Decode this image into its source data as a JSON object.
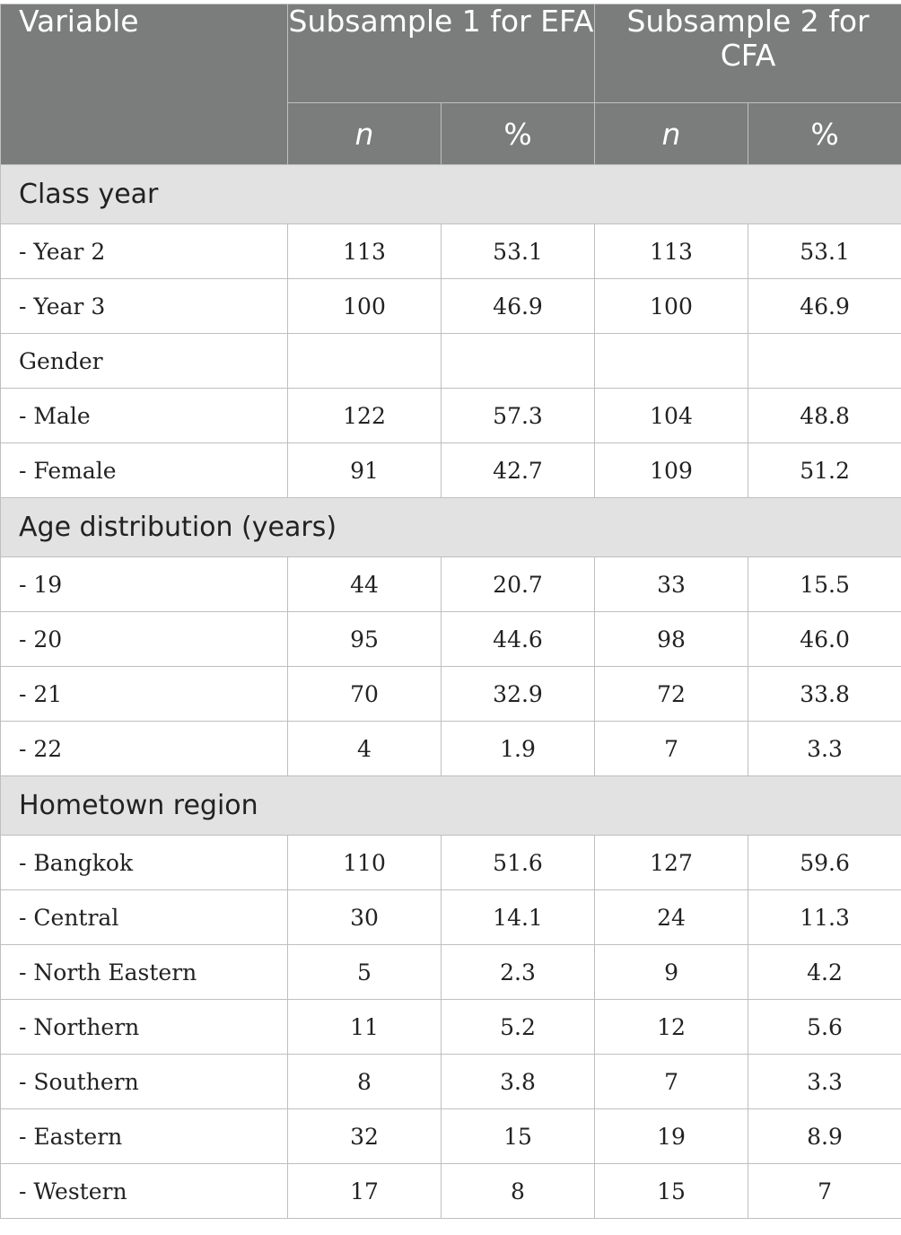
{
  "header": {
    "variable": "Variable",
    "subsample1": "Subsample 1 for EFA",
    "subsample2": "Subsample 2 for CFA",
    "n_label": "n",
    "pct_label": "%"
  },
  "rows": [
    {
      "type": "section",
      "label": "Class year"
    },
    {
      "type": "row",
      "label": "- Year 2",
      "n1": "113",
      "p1": "53.1",
      "n2": "113",
      "p2": "53.1"
    },
    {
      "type": "row",
      "label": "- Year 3",
      "n1": "100",
      "p1": "46.9",
      "n2": "100",
      "p2": "46.9"
    },
    {
      "type": "row",
      "label": "Gender",
      "n1": "",
      "p1": "",
      "n2": "",
      "p2": ""
    },
    {
      "type": "row",
      "label": "- Male",
      "n1": "122",
      "p1": "57.3",
      "n2": "104",
      "p2": "48.8"
    },
    {
      "type": "row",
      "label": "- Female",
      "n1": "91",
      "p1": "42.7",
      "n2": "109",
      "p2": "51.2"
    },
    {
      "type": "section",
      "label": "Age distribution (years)"
    },
    {
      "type": "row",
      "label": "- 19",
      "n1": "44",
      "p1": "20.7",
      "n2": "33",
      "p2": "15.5"
    },
    {
      "type": "row",
      "label": "- 20",
      "n1": "95",
      "p1": "44.6",
      "n2": "98",
      "p2": "46.0"
    },
    {
      "type": "row",
      "label": "- 21",
      "n1": "70",
      "p1": "32.9",
      "n2": "72",
      "p2": "33.8"
    },
    {
      "type": "row",
      "label": "- 22",
      "n1": "4",
      "p1": "1.9",
      "n2": "7",
      "p2": "3.3"
    },
    {
      "type": "section",
      "label": "Hometown region"
    },
    {
      "type": "row",
      "label": "- Bangkok",
      "n1": "110",
      "p1": "51.6",
      "n2": "127",
      "p2": "59.6"
    },
    {
      "type": "row",
      "label": "- Central",
      "n1": "30",
      "p1": "14.1",
      "n2": "24",
      "p2": "11.3"
    },
    {
      "type": "row",
      "label": "- North Eastern",
      "n1": "5",
      "p1": "2.3",
      "n2": "9",
      "p2": "4.2"
    },
    {
      "type": "row",
      "label": "- Northern",
      "n1": "11",
      "p1": "5.2",
      "n2": "12",
      "p2": "5.6"
    },
    {
      "type": "row",
      "label": "- Southern",
      "n1": "8",
      "p1": "3.8",
      "n2": "7",
      "p2": "3.3"
    },
    {
      "type": "row",
      "label": "- Eastern",
      "n1": "32",
      "p1": "15",
      "n2": "19",
      "p2": "8.9"
    },
    {
      "type": "row",
      "label": "- Western",
      "n1": "17",
      "p1": "8",
      "n2": "15",
      "p2": "7"
    }
  ]
}
